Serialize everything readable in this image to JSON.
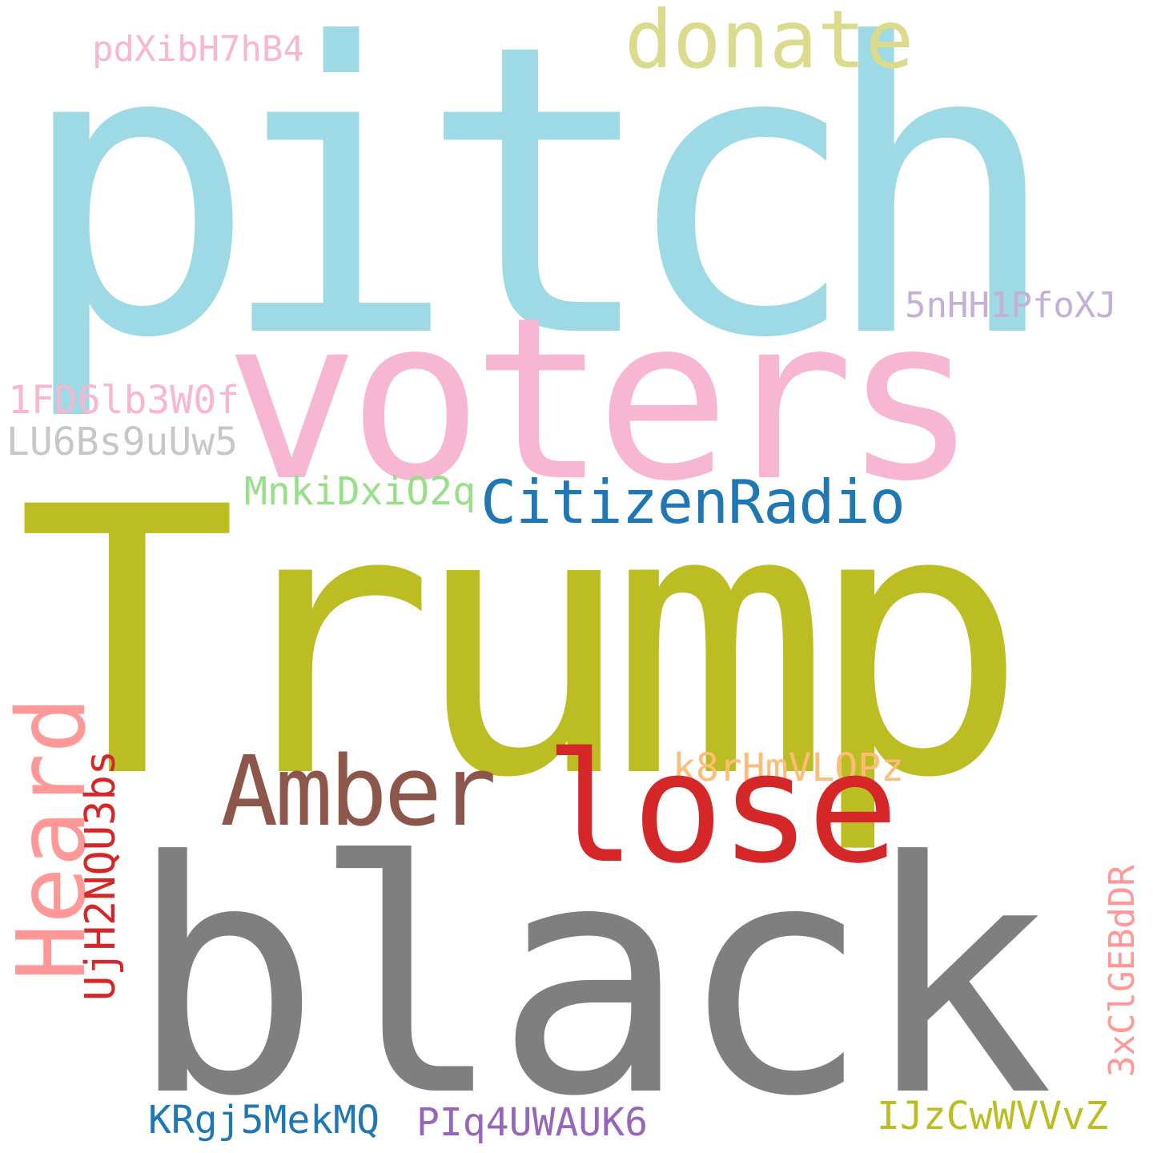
{
  "words": {
    "pitch": {
      "text": "pitch",
      "color": "#9edae5"
    },
    "trump": {
      "text": "Trump",
      "color": "#bcbd22"
    },
    "black": {
      "text": "black",
      "color": "#7f7f7f"
    },
    "voters": {
      "text": "voters",
      "color": "#f7b6d2"
    },
    "lose": {
      "text": "lose",
      "color": "#d62728"
    },
    "amber": {
      "text": "Amber",
      "color": "#8c564b"
    },
    "heard": {
      "text": "Heard",
      "color": "#ff9896"
    },
    "donate": {
      "text": "donate",
      "color": "#dbdb8d"
    },
    "citizenradio": {
      "text": "CitizenRadio",
      "color": "#1f77b4"
    },
    "pdx": {
      "text": "pdXibH7hB4",
      "color": "#f7b6d2"
    },
    "5nh": {
      "text": "5nHH1PfoXJ",
      "color": "#c5b0d5"
    },
    "1fd": {
      "text": "1FD6lb3W0f",
      "color": "#f7b6d2"
    },
    "lu6": {
      "text": "LU6Bs9uUw5",
      "color": "#c7c7c7"
    },
    "mnk": {
      "text": "MnkiDxiO2q",
      "color": "#98df8a"
    },
    "k8r": {
      "text": "k8rHmVLOPz",
      "color": "#ffbb78"
    },
    "ujh": {
      "text": "UjH2NQU3bs",
      "color": "#d62728"
    },
    "3xc": {
      "text": "3xClGEBdDR",
      "color": "#ff9896"
    },
    "krg": {
      "text": "KRgj5MekMQ",
      "color": "#1f77b4"
    },
    "piq": {
      "text": "PIq4UWAUK6",
      "color": "#9467bd"
    },
    "ijz": {
      "text": "IJzCwWVVvZ",
      "color": "#bcbd22"
    }
  }
}
